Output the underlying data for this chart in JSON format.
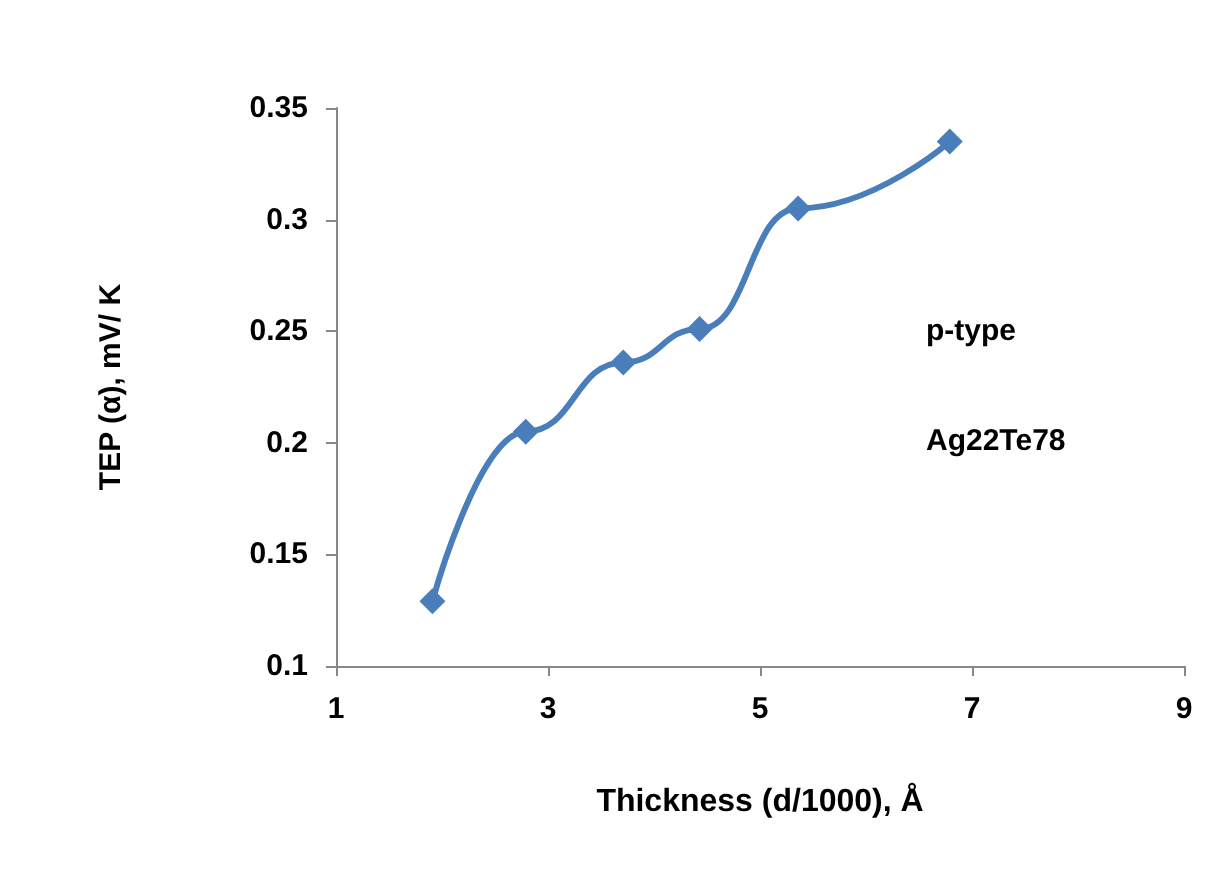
{
  "chart_data": {
    "type": "line",
    "xlabel": "Thickness (d/1000), Å",
    "ylabel": "TEP (α), mV/ K",
    "x": [
      1.91,
      2.79,
      3.71,
      4.43,
      5.36,
      6.79
    ],
    "series": [
      {
        "color": "#4a7ebb",
        "values": [
          0.129,
          0.205,
          0.236,
          0.251,
          0.305,
          0.335
        ]
      }
    ],
    "xlim": [
      1,
      9
    ],
    "xticks": [
      1,
      3,
      5,
      7,
      9
    ],
    "ylim": [
      0.1,
      0.35
    ],
    "yticks": [
      0.1,
      0.15,
      0.2,
      0.25,
      0.3,
      0.35
    ],
    "grid": false,
    "marker": "diamond",
    "line_style": "solid",
    "annotations": [
      "p-type",
      "Ag22Te78"
    ]
  }
}
